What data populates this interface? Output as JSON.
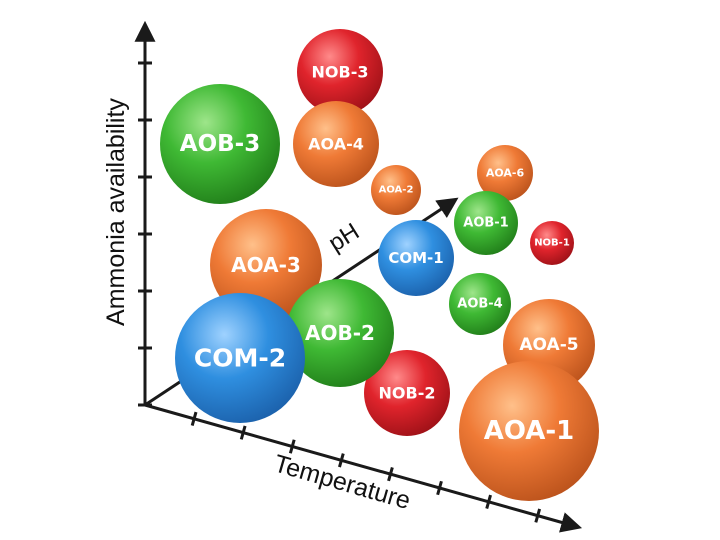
{
  "axes": {
    "y_label": "Ammonia availability",
    "x_label": "Temperature",
    "z_label": "pH"
  },
  "colors": {
    "green": "#3fb934",
    "orange": "#ef7a36",
    "red": "#e0242c",
    "blue": "#2f8fe0",
    "axis": "#1a1a1a"
  },
  "bubbles": [
    {
      "label": "NOB-3",
      "group": "red"
    },
    {
      "label": "AOB-3",
      "group": "green"
    },
    {
      "label": "AOA-4",
      "group": "orange"
    },
    {
      "label": "AOA-6",
      "group": "orange"
    },
    {
      "label": "AOA-2",
      "group": "orange"
    },
    {
      "label": "AOB-1",
      "group": "green"
    },
    {
      "label": "NOB-1",
      "group": "red"
    },
    {
      "label": "COM-1",
      "group": "blue"
    },
    {
      "label": "AOA-3",
      "group": "orange"
    },
    {
      "label": "AOB-4",
      "group": "green"
    },
    {
      "label": "AOA-5",
      "group": "orange"
    },
    {
      "label": "AOB-2",
      "group": "green"
    },
    {
      "label": "NOB-2",
      "group": "red"
    },
    {
      "label": "COM-2",
      "group": "blue"
    },
    {
      "label": "AOA-1",
      "group": "orange"
    }
  ]
}
